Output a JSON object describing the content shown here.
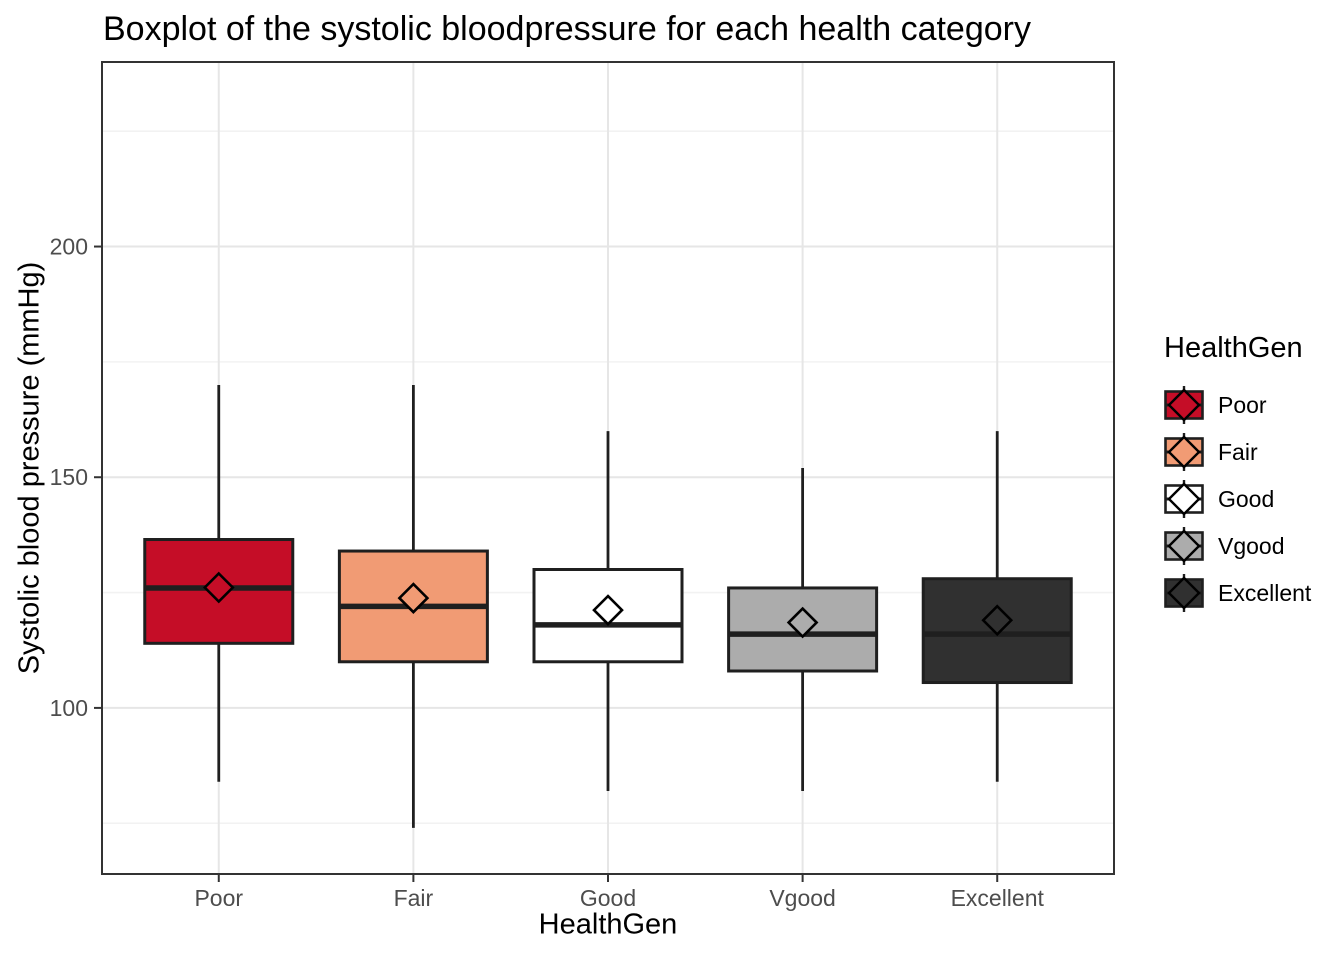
{
  "chart": {
    "background": "#FFFFFF"
  },
  "chart_data": {
    "type": "boxplot",
    "title": "Boxplot of the systolic bloodpressure for each health category",
    "xlabel": "HealthGen",
    "ylabel": "Systolic blood pressure (mmHg)",
    "categories": [
      "Poor",
      "Fair",
      "Good",
      "Vgood",
      "Excellent"
    ],
    "series": [
      {
        "category": "Poor",
        "whisker_low": 84,
        "q1": 114,
        "median": 126,
        "q3": 136.5,
        "whisker_high": 170,
        "mean": 126.1,
        "fill": "#C50D27"
      },
      {
        "category": "Fair",
        "whisker_low": 74,
        "q1": 110,
        "median": 122,
        "q3": 134,
        "whisker_high": 170,
        "mean": 123.8,
        "fill": "#F19B74"
      },
      {
        "category": "Good",
        "whisker_low": 82,
        "q1": 110,
        "median": 118,
        "q3": 130,
        "whisker_high": 160,
        "mean": 121.2,
        "fill": "#FFFFFF"
      },
      {
        "category": "Vgood",
        "whisker_low": 82,
        "q1": 108,
        "median": 116,
        "q3": 126,
        "whisker_high": 152,
        "mean": 118.5,
        "fill": "#ACACAC"
      },
      {
        "category": "Excellent",
        "whisker_low": 84,
        "q1": 105.5,
        "median": 116,
        "q3": 128,
        "whisker_high": 160,
        "mean": 119.0,
        "fill": "#303030"
      }
    ],
    "y_axis": {
      "ticks": [
        100,
        150,
        200
      ],
      "minor_gridlines": [
        75,
        125,
        175,
        225
      ],
      "range": [
        64,
        240
      ],
      "unit": "mmHg"
    },
    "x_axis": {
      "tick_labels": [
        "Poor",
        "Fair",
        "Good",
        "Vgood",
        "Excellent"
      ]
    },
    "mean_marker": "diamond",
    "grid": "major and minor horizontal, major vertical at categories",
    "legend_position": "right"
  },
  "legend": {
    "title": "HealthGen",
    "entries": [
      {
        "label": "Poor",
        "color": "#C50D27"
      },
      {
        "label": "Fair",
        "color": "#F19B74"
      },
      {
        "label": "Good",
        "color": "#FFFFFF"
      },
      {
        "label": "Vgood",
        "color": "#ACACAC"
      },
      {
        "label": "Excellent",
        "color": "#303030"
      }
    ]
  },
  "colors": {
    "box_border": "#1F1F1F",
    "median_line": "#1F1F1F",
    "whisker": "#1F1F1F",
    "diamond_stroke": "#000000",
    "grid_major": "#E6E6E6",
    "grid_minor": "#F2F2F2",
    "panel_border": "#333333",
    "tick_mark": "#333333",
    "tick_label": "#4D4D4D",
    "panel_background": "#FFFFFF"
  }
}
